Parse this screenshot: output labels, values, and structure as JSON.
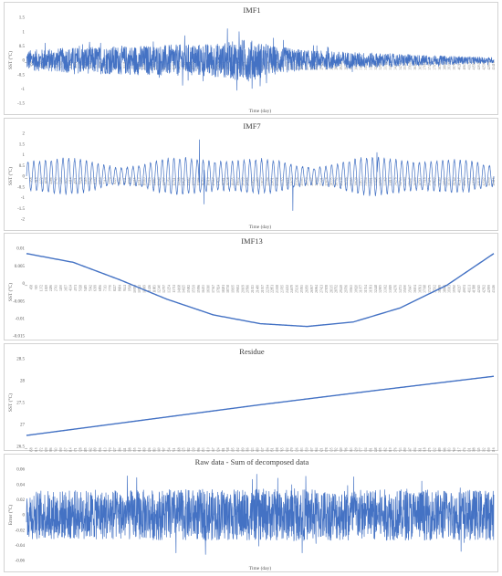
{
  "chart_data": [
    {
      "type": "line",
      "title": "IMF1",
      "xlabel": "Time (day)",
      "ylabel": "SST (°C)",
      "ylim": [
        -1.5,
        1.5
      ],
      "yticks": [
        "1.5",
        "1",
        "0.5",
        "0",
        "-0.5",
        "-1",
        "-1.5"
      ],
      "x_range": [
        1,
        44000
      ],
      "series_kind": "noise",
      "amplitude_envelope": [
        [
          0,
          0.35
        ],
        [
          0.1,
          0.45
        ],
        [
          0.2,
          0.5
        ],
        [
          0.33,
          0.55
        ],
        [
          0.42,
          0.6
        ],
        [
          0.47,
          0.75
        ],
        [
          0.53,
          0.5
        ],
        [
          0.6,
          0.35
        ],
        [
          0.75,
          0.25
        ],
        [
          0.9,
          0.15
        ],
        [
          1.0,
          0.1
        ]
      ],
      "spikes": [
        [
          0.43,
          1.1
        ],
        [
          0.45,
          -1.05
        ],
        [
          0.455,
          1.0
        ],
        [
          0.04,
          0.6
        ],
        [
          0.12,
          0.55
        ],
        [
          0.55,
          0.7
        ],
        [
          0.5,
          -0.9
        ]
      ],
      "grid": false,
      "color": "#4472C4"
    },
    {
      "type": "line",
      "title": "IMF7",
      "xlabel": "Time (day)",
      "ylabel": "SST (°C)",
      "ylim": [
        -2,
        2
      ],
      "yticks": [
        "2",
        "1.5",
        "1",
        "0.5",
        "0",
        "-0.5",
        "-1",
        "-1.5",
        "-2"
      ],
      "x_range": [
        1,
        44000
      ],
      "series_kind": "oscillation",
      "period_fraction": 0.0125,
      "amplitude": 0.8,
      "spikes": [
        [
          0.37,
          1.7
        ],
        [
          0.38,
          -1.3
        ],
        [
          0.57,
          -1.6
        ],
        [
          0.75,
          1.1
        ]
      ],
      "grid": false,
      "color": "#4472C4"
    },
    {
      "type": "line",
      "title": "IMF13",
      "xlabel": "",
      "ylabel": "SST (°C)",
      "ylim": [
        -0.015,
        0.01
      ],
      "yticks": [
        "0.01",
        "0.005",
        "0",
        "-0.005",
        "-0.01",
        "-0.015"
      ],
      "x_range": [
        1,
        44000
      ],
      "points": [
        [
          0,
          0.0085
        ],
        [
          0.1,
          0.006
        ],
        [
          0.2,
          0.001
        ],
        [
          0.3,
          -0.0045
        ],
        [
          0.4,
          -0.009
        ],
        [
          0.5,
          -0.0115
        ],
        [
          0.6,
          -0.0123
        ],
        [
          0.7,
          -0.011
        ],
        [
          0.8,
          -0.007
        ],
        [
          0.9,
          -0.0005
        ],
        [
          1.0,
          0.0085
        ]
      ],
      "grid": false,
      "color": "#4472C4"
    },
    {
      "type": "line",
      "title": "Residue",
      "xlabel": "",
      "ylabel": "SST (°C)",
      "ylim": [
        26.5,
        28.5
      ],
      "yticks": [
        "28.5",
        "28",
        "27.5",
        "27",
        "26.5"
      ],
      "x_range": [
        1,
        44000
      ],
      "points": [
        [
          0,
          26.75
        ],
        [
          0.25,
          27.1
        ],
        [
          0.5,
          27.45
        ],
        [
          0.75,
          27.78
        ],
        [
          1.0,
          28.1
        ]
      ],
      "grid": false,
      "color": "#4472C4"
    },
    {
      "type": "line",
      "title": "Raw data - Sum of decomposed data",
      "xlabel": "Time (day)",
      "ylabel": "Error (°C)",
      "ylim": [
        -0.06,
        0.06
      ],
      "yticks": [
        "0.06",
        "0.04",
        "0.02",
        "0",
        "-0.02",
        "-0.04",
        "-0.06"
      ],
      "x_range": [
        1,
        44000
      ],
      "series_kind": "noise",
      "amplitude_envelope": [
        [
          0,
          0.032
        ],
        [
          0.5,
          0.034
        ],
        [
          1.0,
          0.033
        ]
      ],
      "spikes": [
        [
          0.59,
          -0.05
        ],
        [
          0.7,
          0.05
        ],
        [
          0.32,
          -0.05
        ],
        [
          0.93,
          -0.048
        ]
      ],
      "grid": false,
      "color": "#4472C4"
    }
  ],
  "xtick_labels": [
    "1",
    "458",
    "915",
    "1372",
    "1829",
    "2286",
    "2743",
    "3200",
    "3657",
    "4114",
    "4571",
    "5028",
    "5485",
    "5942",
    "6399",
    "6856",
    "7313",
    "7770",
    "8227",
    "8684",
    "9141",
    "9598",
    "10055",
    "10512",
    "10969",
    "11426",
    "11883",
    "12340",
    "12797",
    "13254",
    "13711",
    "14168",
    "14625",
    "15082",
    "15539",
    "15996",
    "16453",
    "16910",
    "17367",
    "17824",
    "18281",
    "18738",
    "19195",
    "19652",
    "20109",
    "20566",
    "21023",
    "21480",
    "21937",
    "22394",
    "22851",
    "23308",
    "23765",
    "24222",
    "24679",
    "25136",
    "25593",
    "26050",
    "26507",
    "26964",
    "27421",
    "27878",
    "28335",
    "28792",
    "29249",
    "29706",
    "30163",
    "30620",
    "31077",
    "31534",
    "31991",
    "32448",
    "32905",
    "33362",
    "33819",
    "34276",
    "34733",
    "35190",
    "35647",
    "36104",
    "36561",
    "37018",
    "37475",
    "37932",
    "38389",
    "38846",
    "39303",
    "39760",
    "40217",
    "40674",
    "41131",
    "41588",
    "42045",
    "42502",
    "42959",
    "43416"
  ]
}
